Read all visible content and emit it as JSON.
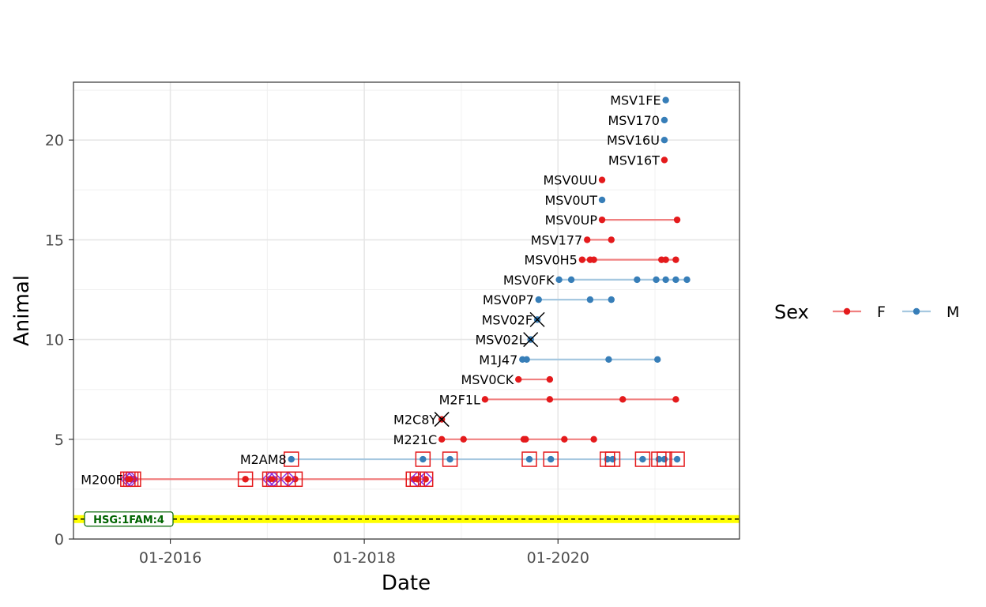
{
  "chart_data": {
    "type": "line",
    "title": "",
    "xlabel": "Date",
    "ylabel": "Animal",
    "xlim": [
      "2015-01-01",
      "2021-11-15"
    ],
    "ylim": [
      0,
      22.9
    ],
    "x_ticks": [
      {
        "date": "2016-01-01",
        "label": "01-2016"
      },
      {
        "date": "2018-01-01",
        "label": "01-2018"
      },
      {
        "date": "2020-01-01",
        "label": "01-2020"
      }
    ],
    "y_ticks": [
      0,
      5,
      10,
      15,
      20
    ],
    "grid": true,
    "legend": {
      "title": "Sex",
      "position": "right",
      "entries": [
        {
          "label": "F",
          "color": "#E41A1C"
        },
        {
          "label": "M",
          "color": "#377EB8"
        }
      ]
    },
    "reference_line": {
      "y": 1,
      "label": "HSG:1FAM:4",
      "band_color": "#FFFF00",
      "line_color": "#000000",
      "label_color": "#006400"
    },
    "colors": {
      "F_point": "#E41A1C",
      "F_line": "#F08080",
      "M_point": "#377EB8",
      "M_line": "#A6C8E0",
      "box": "#E41A1C",
      "diamond": "#8A2BE2",
      "cross": "#000000"
    },
    "series": [
      {
        "name": "M200F",
        "sex": "F",
        "y": 3,
        "dates": [
          "2015-07-25",
          "2015-08-05",
          "2015-08-15",
          "2016-10-10",
          "2017-01-10",
          "2017-01-25",
          "2017-03-20",
          "2017-04-15",
          "2018-07-05",
          "2018-07-20",
          "2018-08-20"
        ],
        "boxed": [
          "2015-07-25",
          "2015-08-05",
          "2015-08-15",
          "2016-10-10",
          "2017-01-10",
          "2017-01-25",
          "2017-03-20",
          "2017-04-15",
          "2018-07-05",
          "2018-07-20",
          "2018-08-20"
        ],
        "diamond": [
          "2015-07-25",
          "2015-08-05",
          "2017-01-10",
          "2017-01-25",
          "2017-03-20",
          "2018-07-20",
          "2018-08-20"
        ]
      },
      {
        "name": "M2AM8",
        "sex": "M",
        "y": 4,
        "dates": [
          "2017-04-01",
          "2018-08-10",
          "2018-11-20",
          "2019-09-15",
          "2019-12-05",
          "2020-07-05",
          "2020-07-25",
          "2020-11-15",
          "2021-01-15",
          "2021-02-05",
          "2021-03-25"
        ],
        "boxed": [
          "2017-04-01",
          "2018-08-10",
          "2018-11-20",
          "2019-09-15",
          "2019-12-05",
          "2020-07-05",
          "2020-07-25",
          "2020-11-15",
          "2021-01-15",
          "2021-02-05",
          "2021-03-25"
        ],
        "diamond": []
      },
      {
        "name": "M221C",
        "sex": "F",
        "y": 5,
        "dates": [
          "2018-10-20",
          "2019-01-10",
          "2019-08-25",
          "2019-09-01",
          "2020-01-25",
          "2020-05-15"
        ],
        "boxed": [],
        "diamond": []
      },
      {
        "name": "M2C8Y",
        "sex": "F",
        "y": 6,
        "dates": [
          "2018-10-20"
        ],
        "crossed": true,
        "boxed": [],
        "diamond": []
      },
      {
        "name": "M2F1L",
        "sex": "F",
        "y": 7,
        "dates": [
          "2019-04-01",
          "2019-12-01",
          "2020-09-01",
          "2021-03-20"
        ],
        "boxed": [],
        "diamond": []
      },
      {
        "name": "MSV0CK",
        "sex": "F",
        "y": 8,
        "dates": [
          "2019-08-05",
          "2019-12-01"
        ],
        "boxed": [],
        "diamond": []
      },
      {
        "name": "M1J47",
        "sex": "M",
        "y": 9,
        "dates": [
          "2019-08-20",
          "2019-09-05",
          "2020-07-10",
          "2021-01-10"
        ],
        "boxed": [],
        "diamond": []
      },
      {
        "name": "MSV02L",
        "sex": "M",
        "y": 10,
        "dates": [
          "2019-09-20"
        ],
        "crossed": true,
        "boxed": [],
        "diamond": []
      },
      {
        "name": "MSV02F",
        "sex": "M",
        "y": 11,
        "dates": [
          "2019-10-15"
        ],
        "crossed": true,
        "boxed": [],
        "diamond": []
      },
      {
        "name": "MSV0P7",
        "sex": "M",
        "y": 12,
        "dates": [
          "2019-10-20",
          "2020-05-01",
          "2020-07-20"
        ],
        "boxed": [],
        "diamond": []
      },
      {
        "name": "MSV0FK",
        "sex": "M",
        "y": 13,
        "dates": [
          "2020-01-05",
          "2020-02-20",
          "2020-10-25",
          "2021-01-05",
          "2021-02-10",
          "2021-03-20",
          "2021-05-01"
        ],
        "boxed": [],
        "diamond": []
      },
      {
        "name": "MSV0H5",
        "sex": "F",
        "y": 14,
        "dates": [
          "2020-04-01",
          "2020-05-01",
          "2020-05-15",
          "2021-01-25",
          "2021-02-10",
          "2021-03-20"
        ],
        "boxed": [],
        "diamond": []
      },
      {
        "name": "MSV177",
        "sex": "F",
        "y": 15,
        "dates": [
          "2020-04-20",
          "2020-07-20"
        ],
        "boxed": [],
        "diamond": []
      },
      {
        "name": "MSV0UP",
        "sex": "F",
        "y": 16,
        "dates": [
          "2020-06-15",
          "2021-03-25"
        ],
        "boxed": [],
        "diamond": []
      },
      {
        "name": "MSV0UT",
        "sex": "M",
        "y": 17,
        "dates": [
          "2020-06-15"
        ],
        "boxed": [],
        "diamond": []
      },
      {
        "name": "MSV0UU",
        "sex": "F",
        "y": 18,
        "dates": [
          "2020-06-15"
        ],
        "boxed": [],
        "diamond": []
      },
      {
        "name": "MSV16T",
        "sex": "F",
        "y": 19,
        "dates": [
          "2021-02-05"
        ],
        "boxed": [],
        "diamond": []
      },
      {
        "name": "MSV16U",
        "sex": "M",
        "y": 20,
        "dates": [
          "2021-02-05"
        ],
        "boxed": [],
        "diamond": []
      },
      {
        "name": "MSV170",
        "sex": "M",
        "y": 21,
        "dates": [
          "2021-02-05"
        ],
        "boxed": [],
        "diamond": []
      },
      {
        "name": "MSV1FE",
        "sex": "M",
        "y": 22,
        "dates": [
          "2021-02-10"
        ],
        "boxed": [],
        "diamond": []
      }
    ]
  }
}
